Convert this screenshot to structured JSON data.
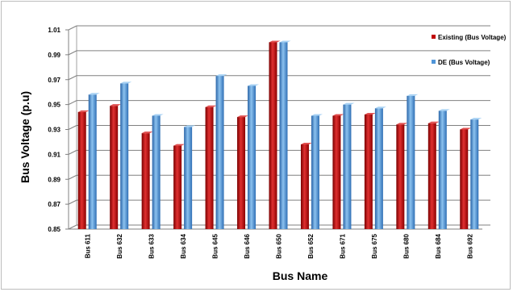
{
  "chart_data": {
    "type": "bar",
    "title": "",
    "xlabel": "Bus Name",
    "ylabel": "Bus Voltage (p.u)",
    "ylim": [
      0.85,
      1.01
    ],
    "yticks": [
      "1.01",
      "0.99",
      "0.97",
      "0.95",
      "0.93",
      "0.91",
      "0.89",
      "0.87",
      "0.85"
    ],
    "categories": [
      "Bus 611",
      "Bus 632",
      "Bus 633",
      "Bus 634",
      "Bus 645",
      "Bus 646",
      "Bus 650",
      "Bus 652",
      "Bus 671",
      "Bus 675",
      "Bus 680",
      "Bus 684",
      "Bus 692"
    ],
    "series": [
      {
        "name": "Existing (Bus Voltage)",
        "color": "#c00000",
        "values": [
          0.944,
          0.949,
          0.927,
          0.917,
          0.948,
          0.94,
          1.0,
          0.918,
          0.941,
          0.942,
          0.934,
          0.935,
          0.93
        ]
      },
      {
        "name": "DE (Bus Voltage)",
        "color": "#4f95d8",
        "values": [
          0.958,
          0.967,
          0.941,
          0.932,
          0.973,
          0.965,
          1.0,
          0.941,
          0.95,
          0.947,
          0.957,
          0.945,
          0.938
        ]
      }
    ],
    "grid": true,
    "legend_position": "top-right"
  }
}
